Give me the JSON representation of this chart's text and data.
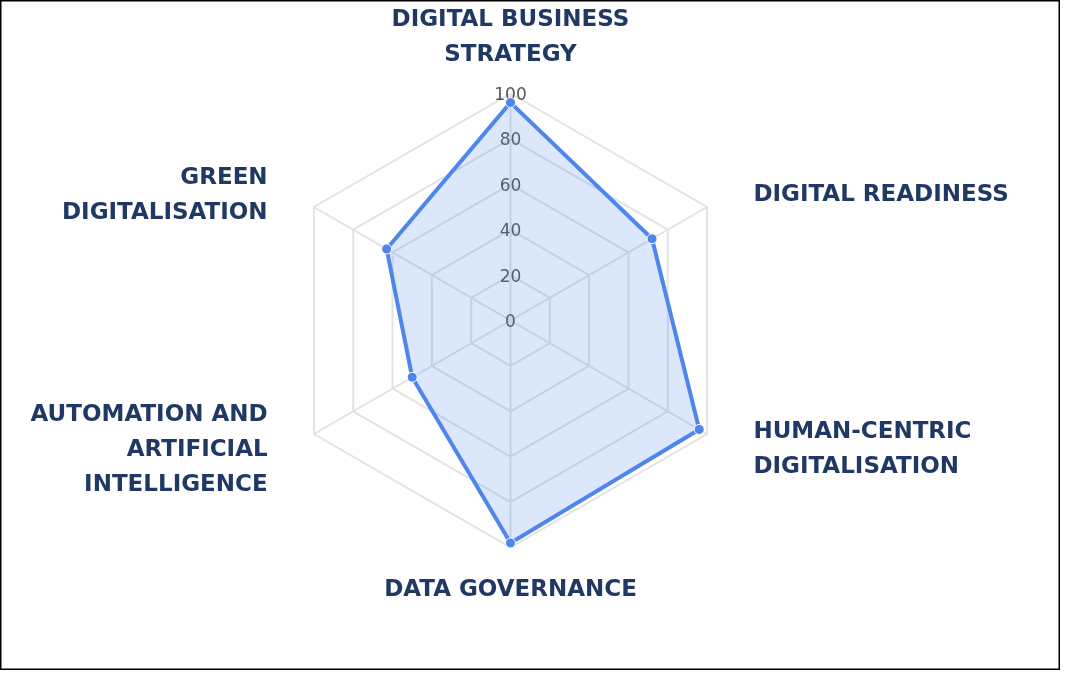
{
  "chart_data": {
    "type": "radar",
    "categories": [
      "DIGITAL BUSINESS STRATEGY",
      "DIGITAL READINESS",
      "HUMAN-CENTRIC DIGITALISATION",
      "DATA GOVERNANCE",
      "AUTOMATION AND ARTIFICIAL INTELLIGENCE",
      "GREEN DIGITALISATION"
    ],
    "series": [
      {
        "color": "#4f86ec",
        "values": [
          96,
          72,
          96,
          98,
          50,
          63
        ]
      }
    ],
    "ylim": [
      0,
      100
    ],
    "yticks": [
      0,
      20,
      40,
      60,
      80,
      100
    ],
    "grid": true,
    "marker": "circle"
  }
}
